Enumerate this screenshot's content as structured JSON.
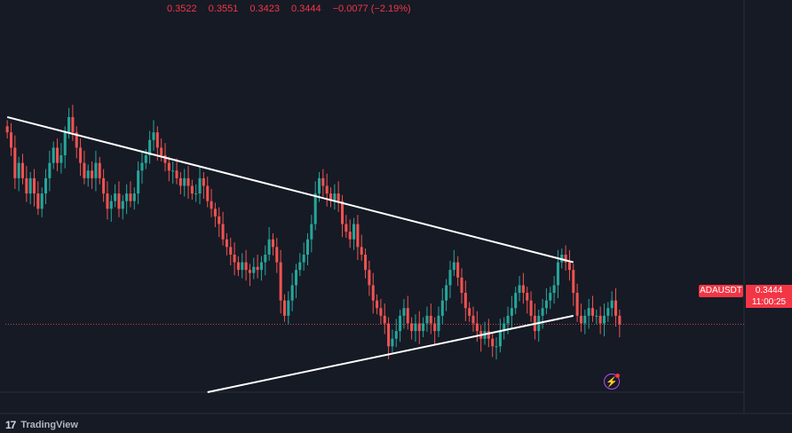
{
  "ohlc": {
    "open": "0.3522",
    "high": "0.3551",
    "low": "0.3423",
    "close": "0.3444",
    "change": "−0.0077 (−2.19%)"
  },
  "symbol": "ADAUSDT",
  "price": "0.3444",
  "countdown": "11:00:25",
  "footer": {
    "logo": "17",
    "brand": "TradingView"
  },
  "colors": {
    "up": "#26a69a",
    "down": "#ef5350",
    "background": "#161a25",
    "trendline": "#ffffff",
    "bolt": "#b84bf2"
  },
  "chart_data": {
    "type": "candlestick",
    "y_range": [
      0.3,
      0.545
    ],
    "last_price": 0.3444,
    "closes": [
      0.47,
      0.46,
      0.44,
      0.45,
      0.44,
      0.43,
      0.44,
      0.43,
      0.42,
      0.43,
      0.44,
      0.45,
      0.46,
      0.45,
      0.455,
      0.47,
      0.48,
      0.47,
      0.46,
      0.45,
      0.44,
      0.445,
      0.44,
      0.45,
      0.44,
      0.43,
      0.42,
      0.425,
      0.43,
      0.42,
      0.425,
      0.43,
      0.425,
      0.43,
      0.445,
      0.45,
      0.455,
      0.465,
      0.47,
      0.46,
      0.455,
      0.45,
      0.445,
      0.445,
      0.44,
      0.435,
      0.44,
      0.435,
      0.43,
      0.43,
      0.44,
      0.435,
      0.425,
      0.42,
      0.415,
      0.41,
      0.4,
      0.395,
      0.39,
      0.385,
      0.38,
      0.385,
      0.38,
      0.378,
      0.382,
      0.38,
      0.385,
      0.39,
      0.4,
      0.395,
      0.385,
      0.36,
      0.35,
      0.36,
      0.37,
      0.38,
      0.385,
      0.39,
      0.4,
      0.41,
      0.43,
      0.44,
      0.435,
      0.43,
      0.425,
      0.43,
      0.425,
      0.41,
      0.405,
      0.4,
      0.41,
      0.395,
      0.39,
      0.38,
      0.37,
      0.36,
      0.355,
      0.35,
      0.345,
      0.33,
      0.335,
      0.34,
      0.35,
      0.355,
      0.345,
      0.34,
      0.345,
      0.34,
      0.345,
      0.35,
      0.345,
      0.34,
      0.35,
      0.36,
      0.37,
      0.38,
      0.385,
      0.375,
      0.365,
      0.355,
      0.35,
      0.345,
      0.34,
      0.335,
      0.34,
      0.335,
      0.33,
      0.33,
      0.34,
      0.345,
      0.35,
      0.355,
      0.365,
      0.37,
      0.365,
      0.36,
      0.35,
      0.34,
      0.35,
      0.355,
      0.36,
      0.365,
      0.37,
      0.385,
      0.39,
      0.385,
      0.38,
      0.365,
      0.35,
      0.345,
      0.35,
      0.355,
      0.35,
      0.35,
      0.345,
      0.35,
      0.355,
      0.36,
      0.35,
      0.3444
    ],
    "trendlines": [
      {
        "name": "resistance",
        "points": [
          [
            0,
            0.48
          ],
          [
            147,
            0.385
          ]
        ]
      },
      {
        "name": "support",
        "points": [
          [
            52,
            0.3
          ],
          [
            147,
            0.35
          ]
        ]
      }
    ]
  }
}
